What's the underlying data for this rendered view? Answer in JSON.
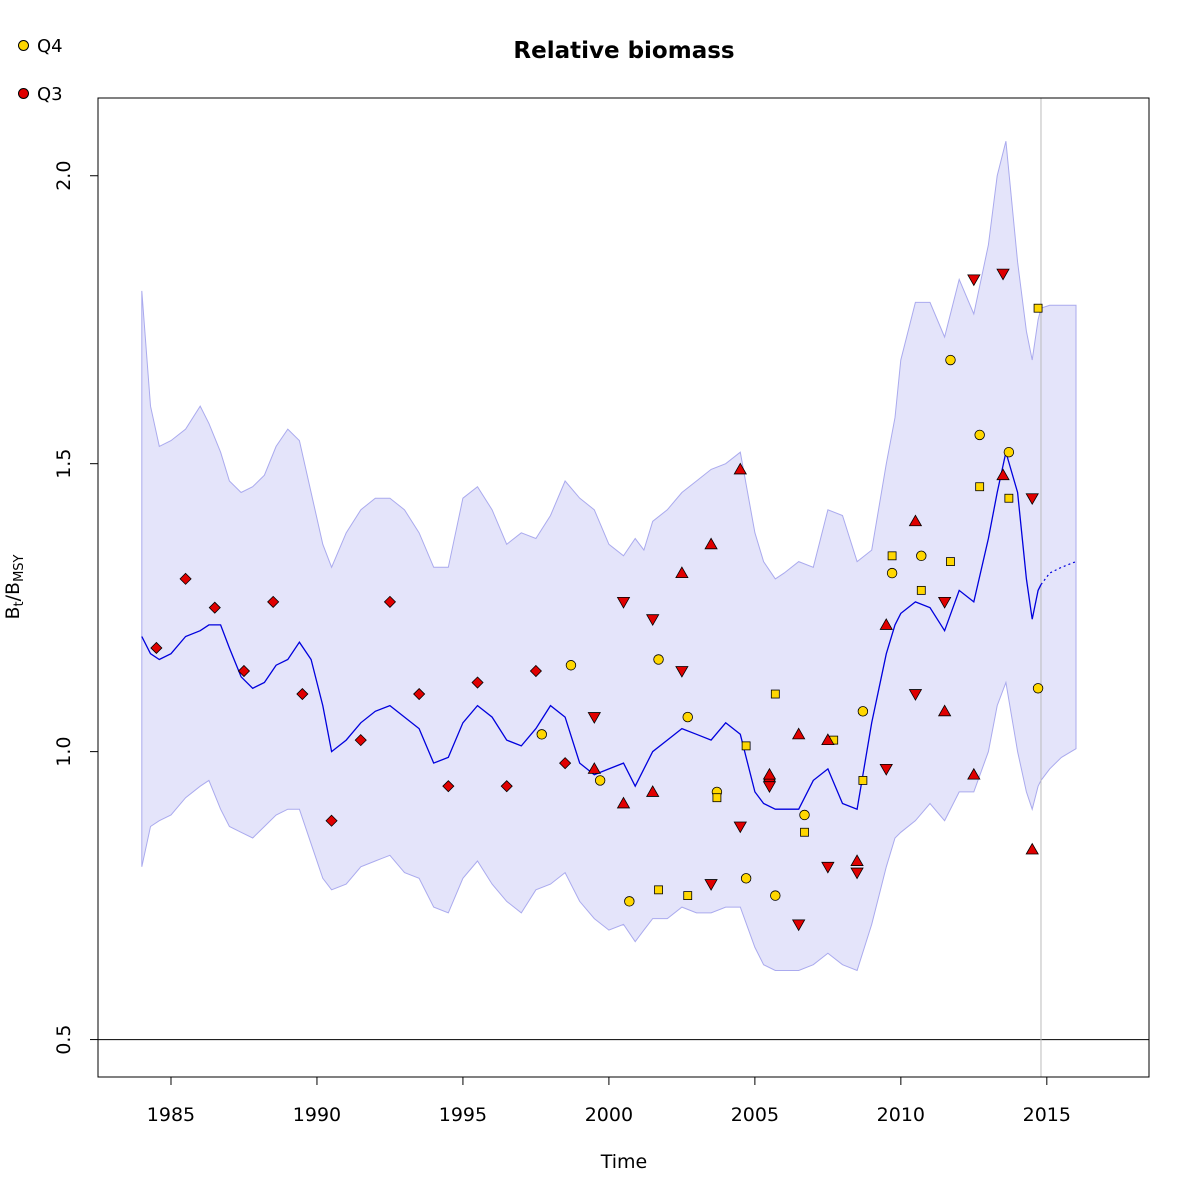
{
  "legend": [
    {
      "label": "Q4",
      "color": "#FFD700"
    },
    {
      "label": "Q3",
      "color": "#E00000"
    }
  ],
  "chart_data": {
    "type": "line",
    "title": "Relative biomass",
    "xlabel": "Time",
    "ylabel_main": "B",
    "ylabel_sub1": "t",
    "ylabel_sep": "/B",
    "ylabel_sub2": "MSY",
    "xlim": [
      1982.5,
      2018.5
    ],
    "ylim": [
      0.435,
      2.135
    ],
    "x_ticks": [
      1985,
      1990,
      1995,
      2000,
      2005,
      2010,
      2015
    ],
    "y_ticks": [
      0.5,
      1.0,
      1.5,
      2.0
    ],
    "y_tick_labels": [
      "0.5",
      "1.0",
      "1.5",
      "2.0"
    ],
    "reference_line_y": 0.5,
    "vertical_line_x": 2014.8,
    "colors": {
      "line": "#0000DD",
      "band": "#E4E4FA",
      "band_edge": "#AAAAEE",
      "q4": "#FFD700",
      "q3": "#E00000"
    },
    "biomass": {
      "x": [
        1984.0,
        1984.3,
        1984.6,
        1985.0,
        1985.5,
        1986.0,
        1986.3,
        1986.7,
        1987.0,
        1987.4,
        1987.8,
        1988.2,
        1988.6,
        1989.0,
        1989.4,
        1989.8,
        1990.2,
        1990.5,
        1991.0,
        1991.5,
        1992.0,
        1992.5,
        1993.0,
        1993.5,
        1994.0,
        1994.5,
        1995.0,
        1995.5,
        1996.0,
        1996.5,
        1997.0,
        1997.5,
        1998.0,
        1998.5,
        1999.0,
        1999.5,
        2000.0,
        2000.5,
        2000.9,
        2001.2,
        2001.5,
        2002.0,
        2002.5,
        2003.0,
        2003.5,
        2004.0,
        2004.5,
        2005.0,
        2005.3,
        2005.7,
        2006.0,
        2006.5,
        2007.0,
        2007.5,
        2008.0,
        2008.5,
        2009.0,
        2009.5,
        2009.8,
        2010.0,
        2010.5,
        2011.0,
        2011.5,
        2012.0,
        2012.5,
        2013.0,
        2013.3,
        2013.6,
        2014.0,
        2014.3,
        2014.5,
        2014.7,
        2014.8
      ],
      "mid": [
        1.2,
        1.17,
        1.16,
        1.17,
        1.2,
        1.21,
        1.22,
        1.22,
        1.18,
        1.13,
        1.11,
        1.12,
        1.15,
        1.16,
        1.19,
        1.16,
        1.08,
        1.0,
        1.02,
        1.05,
        1.07,
        1.08,
        1.06,
        1.04,
        0.98,
        0.99,
        1.05,
        1.08,
        1.06,
        1.02,
        1.01,
        1.04,
        1.08,
        1.06,
        0.98,
        0.96,
        0.97,
        0.98,
        0.94,
        0.97,
        1.0,
        1.02,
        1.04,
        1.03,
        1.02,
        1.05,
        1.03,
        0.93,
        0.91,
        0.9,
        0.9,
        0.9,
        0.95,
        0.97,
        0.91,
        0.9,
        1.05,
        1.17,
        1.22,
        1.24,
        1.26,
        1.25,
        1.21,
        1.28,
        1.26,
        1.37,
        1.45,
        1.52,
        1.45,
        1.3,
        1.23,
        1.28,
        1.29
      ],
      "upper": [
        1.8,
        1.6,
        1.53,
        1.54,
        1.56,
        1.6,
        1.57,
        1.52,
        1.47,
        1.45,
        1.46,
        1.48,
        1.53,
        1.56,
        1.54,
        1.45,
        1.36,
        1.32,
        1.38,
        1.42,
        1.44,
        1.44,
        1.42,
        1.38,
        1.32,
        1.32,
        1.44,
        1.46,
        1.42,
        1.36,
        1.38,
        1.37,
        1.41,
        1.47,
        1.44,
        1.42,
        1.36,
        1.34,
        1.37,
        1.35,
        1.4,
        1.42,
        1.45,
        1.47,
        1.49,
        1.5,
        1.52,
        1.38,
        1.33,
        1.3,
        1.31,
        1.33,
        1.32,
        1.42,
        1.41,
        1.33,
        1.35,
        1.5,
        1.58,
        1.68,
        1.78,
        1.78,
        1.72,
        1.82,
        1.76,
        1.88,
        2.0,
        2.06,
        1.85,
        1.73,
        1.68,
        1.75,
        1.77
      ],
      "lower": [
        0.8,
        0.87,
        0.88,
        0.89,
        0.92,
        0.94,
        0.95,
        0.9,
        0.87,
        0.86,
        0.85,
        0.87,
        0.89,
        0.9,
        0.9,
        0.84,
        0.78,
        0.76,
        0.77,
        0.8,
        0.81,
        0.82,
        0.79,
        0.78,
        0.73,
        0.72,
        0.78,
        0.81,
        0.77,
        0.74,
        0.72,
        0.76,
        0.77,
        0.79,
        0.74,
        0.71,
        0.69,
        0.7,
        0.67,
        0.69,
        0.71,
        0.71,
        0.73,
        0.72,
        0.72,
        0.73,
        0.73,
        0.66,
        0.63,
        0.62,
        0.62,
        0.62,
        0.63,
        0.65,
        0.63,
        0.62,
        0.7,
        0.8,
        0.85,
        0.86,
        0.88,
        0.91,
        0.88,
        0.93,
        0.93,
        1.0,
        1.08,
        1.12,
        1.0,
        0.93,
        0.9,
        0.94,
        0.95
      ]
    },
    "forecast": {
      "x": [
        2014.8,
        2015.1,
        2015.5,
        2016.0
      ],
      "mid": [
        1.29,
        1.31,
        1.32,
        1.33
      ],
      "upper": [
        1.77,
        1.775,
        1.775,
        1.775
      ],
      "lower": [
        0.95,
        0.97,
        0.99,
        1.005
      ]
    },
    "q4_circles": [
      [
        1998.7,
        1.15
      ],
      [
        1999.7,
        0.95
      ],
      [
        1997.7,
        1.03
      ],
      [
        2000.7,
        0.74
      ],
      [
        2001.7,
        1.16
      ],
      [
        2002.7,
        1.06
      ],
      [
        2003.7,
        0.93
      ],
      [
        2004.7,
        0.78
      ],
      [
        2005.7,
        0.75
      ],
      [
        2006.7,
        0.89
      ],
      [
        2008.7,
        1.07
      ],
      [
        2009.7,
        1.31
      ],
      [
        2010.7,
        1.34
      ],
      [
        2011.7,
        1.68
      ],
      [
        2012.7,
        1.55
      ],
      [
        2013.7,
        1.52
      ],
      [
        2014.7,
        1.11
      ]
    ],
    "q4_squares": [
      [
        2001.7,
        0.76
      ],
      [
        2002.7,
        0.75
      ],
      [
        2003.7,
        0.92
      ],
      [
        2004.7,
        1.01
      ],
      [
        2005.7,
        1.1
      ],
      [
        2006.7,
        0.86
      ],
      [
        2007.7,
        1.02
      ],
      [
        2008.7,
        0.95
      ],
      [
        2009.7,
        1.34
      ],
      [
        2010.7,
        1.28
      ],
      [
        2011.7,
        1.33
      ],
      [
        2012.7,
        1.46
      ],
      [
        2013.7,
        1.44
      ],
      [
        2014.7,
        1.77
      ]
    ],
    "q3_diamonds": [
      [
        1984.5,
        1.18
      ],
      [
        1985.5,
        1.3
      ],
      [
        1986.5,
        1.25
      ],
      [
        1987.5,
        1.14
      ],
      [
        1988.5,
        1.26
      ],
      [
        1989.5,
        1.1
      ],
      [
        1990.5,
        0.88
      ],
      [
        1991.5,
        1.02
      ],
      [
        1992.5,
        1.26
      ],
      [
        1993.5,
        1.1
      ],
      [
        1994.5,
        0.94
      ],
      [
        1995.5,
        1.12
      ],
      [
        1996.5,
        0.94
      ],
      [
        1997.5,
        1.14
      ],
      [
        1998.5,
        0.98
      ],
      [
        2005.5,
        0.95
      ]
    ],
    "q3_tri_up": [
      [
        1999.5,
        0.97
      ],
      [
        2000.5,
        0.91
      ],
      [
        2001.5,
        0.93
      ],
      [
        2002.5,
        1.31
      ],
      [
        2003.5,
        1.36
      ],
      [
        2004.5,
        1.49
      ],
      [
        2005.5,
        0.96
      ],
      [
        2006.5,
        1.03
      ],
      [
        2007.5,
        1.02
      ],
      [
        2008.5,
        0.81
      ],
      [
        2009.5,
        1.22
      ],
      [
        2010.5,
        1.4
      ],
      [
        2011.5,
        1.07
      ],
      [
        2012.5,
        0.96
      ],
      [
        2013.5,
        1.48
      ],
      [
        2014.5,
        0.83
      ]
    ],
    "q3_tri_down": [
      [
        1999.5,
        1.06
      ],
      [
        2000.5,
        1.26
      ],
      [
        2001.5,
        1.23
      ],
      [
        2002.5,
        1.14
      ],
      [
        2003.5,
        0.77
      ],
      [
        2004.5,
        0.87
      ],
      [
        2005.5,
        0.94
      ],
      [
        2006.5,
        0.7
      ],
      [
        2007.5,
        0.8
      ],
      [
        2008.5,
        0.79
      ],
      [
        2009.5,
        0.97
      ],
      [
        2010.5,
        1.1
      ],
      [
        2011.5,
        1.26
      ],
      [
        2012.5,
        1.82
      ],
      [
        2013.5,
        1.83
      ],
      [
        2014.5,
        1.44
      ]
    ]
  }
}
